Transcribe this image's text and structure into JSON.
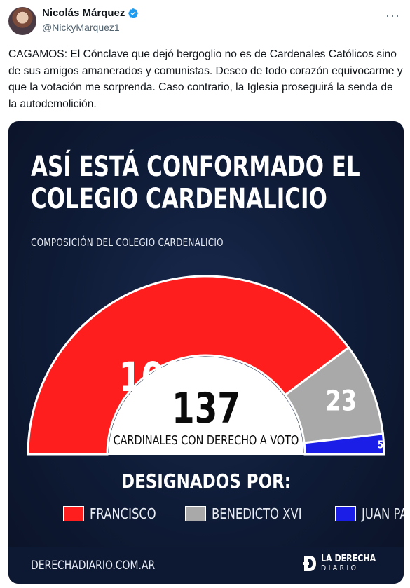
{
  "tweet": {
    "author_name": "Nicolás Márquez",
    "handle": "@NickyMarquez1",
    "more_label": "···",
    "text": "CAGAMOS: El Cónclave que dejó bergoglio no es de Cardenales Católicos sino de sus amigos amanerados y comunistas. Deseo de todo corazón equivocarme y que la votación me sorprenda. Caso contrario, la Iglesia proseguirá la senda de la autodemolición."
  },
  "graphic": {
    "headline_line1": "ASÍ ESTÁ CONFORMADO EL",
    "headline_line2": "COLEGIO CARDENALICIO",
    "subtitle": "COMPOSICIÓN DEL COLEGIO CARDENALICIO",
    "center_total": "137",
    "center_label": "CARDINALES CON DERECHO A VOTO",
    "legend_title": "DESIGNADOS POR:",
    "footer_url": "DERECHADIARIO.COM.AR",
    "brand_line1": "LA DERECHA",
    "brand_line2": "DIARIO"
  },
  "chart_data": {
    "type": "pie",
    "subtype": "half-donut",
    "title": "ASÍ ESTÁ CONFORMADO EL COLEGIO CARDENALICIO",
    "subtitle": "COMPOSICIÓN DEL COLEGIO CARDENALICIO",
    "total": 137,
    "total_label": "CARDINALES CON DERECHO A VOTO",
    "legend_title": "DESIGNADOS POR:",
    "legend_position": "bottom",
    "slices": [
      {
        "label": "FRANCISCO",
        "value": 109,
        "color": "#ff1e1e"
      },
      {
        "label": "BENEDICTO XVI",
        "value": 23,
        "color": "#a9a9a9"
      },
      {
        "label": "JUAN PABLO II",
        "value": 5,
        "color": "#1a1ee6"
      }
    ]
  }
}
